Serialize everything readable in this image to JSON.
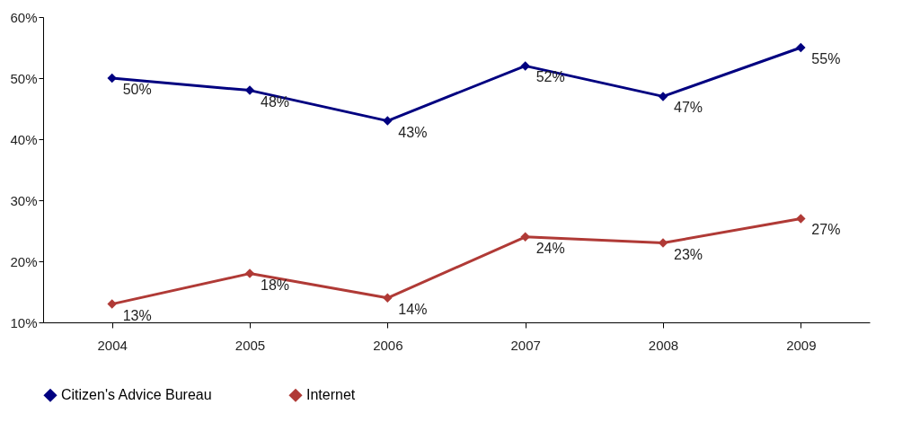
{
  "chart_data": {
    "type": "line",
    "categories": [
      "2004",
      "2005",
      "2006",
      "2007",
      "2008",
      "2009"
    ],
    "series": [
      {
        "name": "Citizen's Advice Bureau",
        "color": "#000080",
        "values": [
          50,
          48,
          43,
          52,
          47,
          55
        ],
        "value_labels": [
          "50%",
          "48%",
          "43%",
          "52%",
          "47%",
          "55%"
        ]
      },
      {
        "name": "Internet",
        "color": "#b03a36",
        "values": [
          13,
          18,
          14,
          24,
          23,
          27
        ],
        "value_labels": [
          "13%",
          "18%",
          "14%",
          "24%",
          "23%",
          "27%"
        ]
      }
    ],
    "ylim": [
      10,
      60
    ],
    "yticks": [
      {
        "value": 10,
        "label": "10%"
      },
      {
        "value": 20,
        "label": "20%"
      },
      {
        "value": 30,
        "label": "30%"
      },
      {
        "value": 40,
        "label": "40%"
      },
      {
        "value": 50,
        "label": "50%"
      },
      {
        "value": 60,
        "label": "60%"
      }
    ],
    "grid": false,
    "legend": "bottom",
    "marker": "diamond",
    "line_style": "solid"
  }
}
